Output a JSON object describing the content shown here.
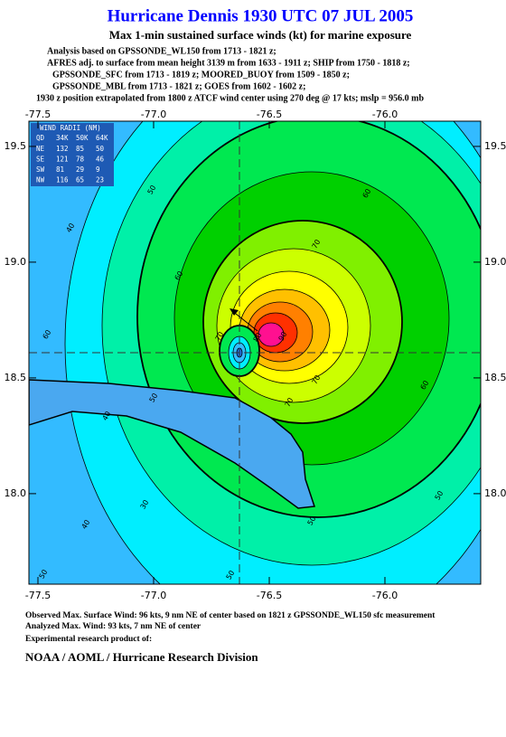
{
  "title": "Hurricane Dennis 1930 UTC 07 JUL 2005",
  "subtitle": "Max 1-min sustained surface winds (kt) for marine exposure",
  "analysis": [
    "Analysis based on  GPSSONDE_WL150 from 1713 - 1821 z;",
    "AFRES adj. to surface from mean height 3139 m from 1633 - 1911 z;  SHIP from 1750 - 1818 z;",
    "GPSSONDE_SFC from 1713 - 1819 z;  MOORED_BUOY from 1509 - 1850 z;",
    "GPSSONDE_MBL from 1713 - 1821 z;  GOES from 1602 - 1602 z;"
  ],
  "position_note": "1930 z position extrapolated from 1800 z ATCF wind center using 270 deg @ 17 kts; mslp = 956.0 mb",
  "map": {
    "xlim": [
      -77.539,
      -75.586
    ],
    "ylim": [
      17.609,
      19.609
    ],
    "xticks": [
      -77.5,
      {
        "value": -77,
        "label": "-77.0"
      },
      -76.5,
      {
        "value": -76,
        "label": "-76.0"
      }
    ],
    "yticks": [
      {
        "value": 18,
        "label": "18.0"
      },
      18.5,
      {
        "value": 19,
        "label": "19.0"
      },
      19.5
    ],
    "contour_labels": [
      "50",
      "40",
      "60",
      "60",
      "70",
      "60",
      "70",
      "80",
      "90",
      "70",
      "70",
      "60",
      "50",
      "50",
      "50",
      "40",
      "30",
      "40",
      "50",
      "50"
    ]
  },
  "wind_radii": {
    "title": "WIND RADII (NM)",
    "header": [
      "QD",
      "34K",
      "50K",
      "64K"
    ],
    "rows": [
      [
        "NE",
        "132",
        "85",
        "50"
      ],
      [
        "SE",
        "121",
        "78",
        "46"
      ],
      [
        "SW",
        "81",
        "29",
        "9"
      ],
      [
        "NW",
        "116",
        "65",
        "23"
      ]
    ]
  },
  "footer": [
    "Observed Max. Surface Wind: 96 kts, 9 nm NE of center based on 1821 z GPSSONDE_WL150 sfc measurement",
    "Analyzed Max. Wind: 93 kts, 7 nm NE of center",
    "Experimental research product of:"
  ],
  "credit": "NOAA / AOML / Hurricane Research Division"
}
